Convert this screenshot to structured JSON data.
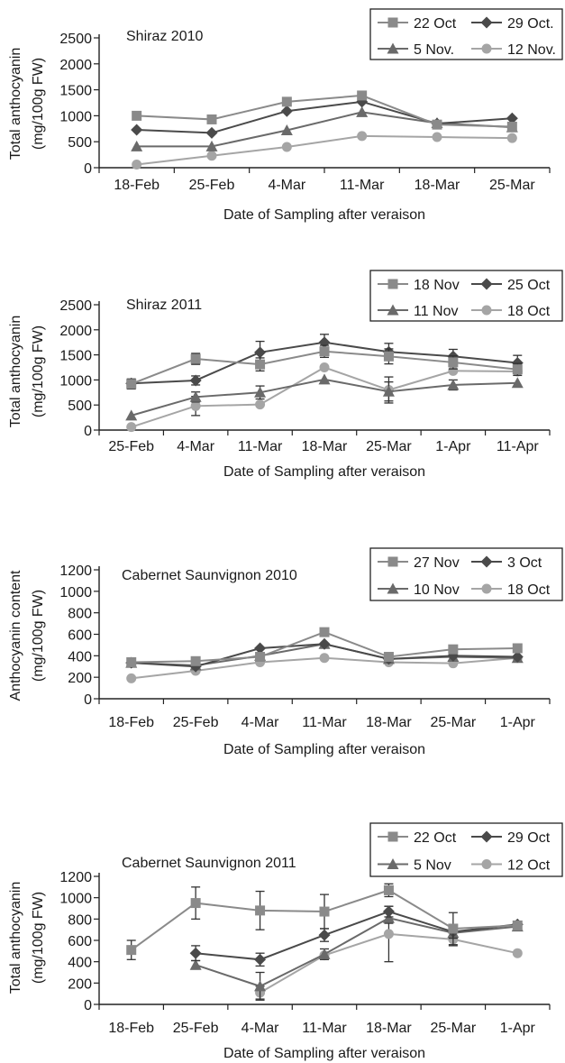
{
  "chart_data": [
    {
      "type": "line",
      "title": "Shiraz 2010",
      "xlabel": "Date of Sampling after veraison",
      "ylabel": "Total anthocyanin\n(mg/100g FW)",
      "ylim": [
        0,
        2500
      ],
      "yticks": [
        0,
        500,
        1000,
        1500,
        2000,
        2500
      ],
      "categories": [
        "18-Feb",
        "25-Feb",
        "4-Mar",
        "11-Mar",
        "18-Mar",
        "25-Mar"
      ],
      "legend": "top-right",
      "grid": false,
      "series": [
        {
          "name": "22 Oct",
          "marker": "square",
          "color": "#8a8a8a",
          "values": [
            1000,
            930,
            1270,
            1390,
            830,
            790
          ]
        },
        {
          "name": "29 Oct.",
          "marker": "diamond",
          "color": "#4a4a4a",
          "values": [
            730,
            670,
            1090,
            1270,
            850,
            950
          ]
        },
        {
          "name": "5 Nov.",
          "marker": "triangle",
          "color": "#6a6a6a",
          "values": [
            410,
            410,
            720,
            1070,
            860,
            780
          ]
        },
        {
          "name": "12 Nov.",
          "marker": "circle",
          "color": "#a5a5a5",
          "values": [
            60,
            230,
            400,
            610,
            590,
            570
          ]
        }
      ]
    },
    {
      "type": "line",
      "title": "Shiraz 2011",
      "xlabel": "Date of Sampling after veraison",
      "ylabel": "Total anthocyanin\n(mg/100g FW)",
      "ylim": [
        0,
        2500
      ],
      "yticks": [
        0,
        500,
        1000,
        1500,
        2000,
        2500
      ],
      "categories": [
        "25-Feb",
        "4-Mar",
        "11-Mar",
        "18-Mar",
        "25-Mar",
        "1-Apr",
        "11-Apr"
      ],
      "legend": "top-right",
      "grid": false,
      "series": [
        {
          "name": "18 Nov",
          "marker": "square",
          "color": "#8a8a8a",
          "values": [
            920,
            1420,
            1310,
            1570,
            1470,
            1350,
            1210
          ],
          "errors": [
            100,
            110,
            130,
            120,
            150,
            130,
            120
          ]
        },
        {
          "name": "25 Oct",
          "marker": "diamond",
          "color": "#4a4a4a",
          "values": [
            930,
            990,
            1550,
            1750,
            1560,
            1470,
            1340
          ],
          "errors": [
            80,
            90,
            220,
            160,
            170,
            140,
            150
          ]
        },
        {
          "name": "11 Nov",
          "marker": "triangle",
          "color": "#6a6a6a",
          "values": [
            290,
            660,
            750,
            1010,
            770,
            900,
            940
          ],
          "errors": [
            0,
            100,
            130,
            0,
            190,
            100,
            0
          ]
        },
        {
          "name": "18 Oct",
          "marker": "circle",
          "color": "#a5a5a5",
          "values": [
            60,
            480,
            510,
            1250,
            800,
            1180,
            1170
          ],
          "errors": [
            0,
            190,
            0,
            0,
            260,
            0,
            0
          ]
        }
      ]
    },
    {
      "type": "line",
      "title": "Cabernet Saunvignon 2010",
      "xlabel": "Date of Sampling after veraison",
      "ylabel": "Anthocyanin content\n(mg/100g FW)",
      "ylim": [
        0,
        1200
      ],
      "yticks": [
        0,
        200,
        400,
        600,
        800,
        1000,
        1200
      ],
      "categories": [
        "18-Feb",
        "25-Feb",
        "4-Mar",
        "11-Mar",
        "18-Mar",
        "25-Mar",
        "1-Apr"
      ],
      "legend": "top-right",
      "grid": false,
      "series": [
        {
          "name": "27 Nov",
          "marker": "square",
          "color": "#8a8a8a",
          "values": [
            340,
            350,
            390,
            620,
            390,
            460,
            470
          ]
        },
        {
          "name": "3 Oct",
          "marker": "diamond",
          "color": "#4a4a4a",
          "values": [
            335,
            300,
            470,
            510,
            370,
            400,
            390
          ]
        },
        {
          "name": "10 Nov",
          "marker": "triangle",
          "color": "#6a6a6a",
          "values": [
            335,
            310,
            400,
            510,
            370,
            390,
            380
          ]
        },
        {
          "name": "18 Oct",
          "marker": "circle",
          "color": "#a5a5a5",
          "values": [
            190,
            260,
            340,
            380,
            340,
            330,
            380
          ]
        }
      ]
    },
    {
      "type": "line",
      "title": "Cabernet Saunvignon 2011",
      "xlabel": "Date of Sampling after veraison",
      "ylabel": "Total anthocyanin\n(mg/100g FW)",
      "ylim": [
        0,
        1200
      ],
      "yticks": [
        0,
        200,
        400,
        600,
        800,
        1000,
        1200
      ],
      "categories": [
        "18-Feb",
        "25-Feb",
        "4-Mar",
        "11-Mar",
        "18-Mar",
        "25-Mar",
        "1-Apr"
      ],
      "legend": "top-right",
      "grid": false,
      "series": [
        {
          "name": "22 Oct",
          "marker": "square",
          "color": "#8a8a8a",
          "values": [
            510,
            950,
            880,
            870,
            1070,
            710,
            740
          ],
          "errors": [
            90,
            150,
            180,
            160,
            60,
            150,
            0
          ]
        },
        {
          "name": "29 Oct",
          "marker": "diamond",
          "color": "#4a4a4a",
          "values": [
            null,
            480,
            420,
            650,
            870,
            680,
            750
          ],
          "errors": [
            0,
            70,
            60,
            60,
            50,
            60,
            0
          ]
        },
        {
          "name": "5 Nov",
          "marker": "triangle",
          "color": "#6a6a6a",
          "values": [
            null,
            370,
            170,
            470,
            810,
            670,
            730
          ],
          "errors": [
            0,
            40,
            130,
            50,
            50,
            0,
            0
          ]
        },
        {
          "name": "12 Oct",
          "marker": "circle",
          "color": "#a5a5a5",
          "values": [
            null,
            null,
            110,
            460,
            660,
            610,
            480
          ],
          "errors": [
            0,
            0,
            60,
            0,
            260,
            60,
            0
          ]
        }
      ]
    }
  ]
}
